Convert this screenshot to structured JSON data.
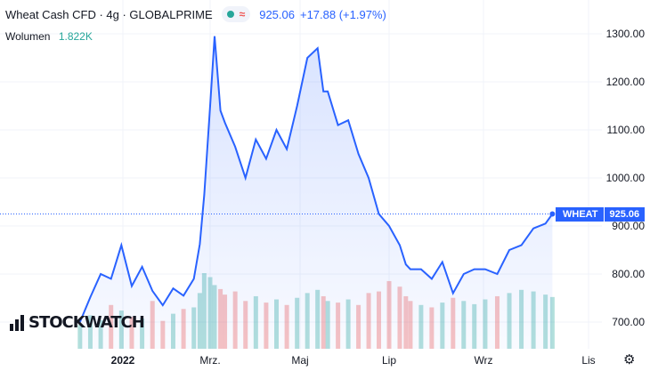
{
  "header": {
    "title": "Wheat Cash CFD · 4g · GLOBALPRIME",
    "price": "925.06",
    "change": "+17.88 (+1.97%)"
  },
  "volume": {
    "label": "Wolumen",
    "value": "1.822K"
  },
  "logo": {
    "text": "STOCKWATCH"
  },
  "price_tag": {
    "symbol": "WHEAT",
    "value": "925.06"
  },
  "colors": {
    "line": "#2962ff",
    "vol_up": "#26a69a",
    "vol_down": "#ef5350",
    "grid": "#f0f3fa"
  },
  "chart_data": {
    "type": "line",
    "symbol": "WHEAT",
    "ylim": [
      660,
      1320
    ],
    "y_ticks": [
      700,
      800,
      900,
      1000,
      1100,
      1200,
      1300
    ],
    "y_tick_labels": [
      "700.00",
      "800.00",
      "900.00",
      "1000.00",
      "1100.00",
      "1200.00",
      "1300.00"
    ],
    "x_ticks": [
      "2022",
      "Mrz.",
      "Maj",
      "Lip",
      "Wrz",
      "Lis"
    ],
    "x": [
      "2021-12-03",
      "2021-12-10",
      "2021-12-17",
      "2021-12-24",
      "2021-12-31",
      "2022-01-07",
      "2022-01-14",
      "2022-01-21",
      "2022-01-28",
      "2022-02-04",
      "2022-02-11",
      "2022-02-18",
      "2022-02-22",
      "2022-02-25",
      "2022-03-01",
      "2022-03-04",
      "2022-03-08",
      "2022-03-11",
      "2022-03-18",
      "2022-03-25",
      "2022-04-01",
      "2022-04-08",
      "2022-04-15",
      "2022-04-22",
      "2022-04-29",
      "2022-05-06",
      "2022-05-13",
      "2022-05-17",
      "2022-05-20",
      "2022-05-27",
      "2022-06-03",
      "2022-06-10",
      "2022-06-17",
      "2022-06-24",
      "2022-07-01",
      "2022-07-08",
      "2022-07-12",
      "2022-07-15",
      "2022-07-22",
      "2022-07-29",
      "2022-08-05",
      "2022-08-12",
      "2022-08-19",
      "2022-08-26",
      "2022-09-02",
      "2022-09-09",
      "2022-09-16",
      "2022-09-23",
      "2022-09-30",
      "2022-10-07",
      "2022-10-11"
    ],
    "values": [
      700,
      752,
      800,
      790,
      860,
      775,
      815,
      765,
      735,
      770,
      755,
      790,
      862,
      965,
      1150,
      1295,
      1140,
      1115,
      1065,
      1000,
      1080,
      1040,
      1100,
      1060,
      1150,
      1250,
      1270,
      1180,
      1180,
      1110,
      1120,
      1050,
      1000,
      925,
      900,
      860,
      820,
      810,
      810,
      790,
      825,
      760,
      800,
      810,
      810,
      800,
      850,
      860,
      895,
      905,
      925
    ],
    "volume": [
      30,
      42,
      36,
      55,
      48,
      40,
      38,
      60,
      35,
      44,
      50,
      52,
      70,
      95,
      90,
      80,
      75,
      68,
      72,
      60,
      66,
      58,
      62,
      55,
      64,
      70,
      74,
      66,
      60,
      58,
      62,
      55,
      70,
      72,
      85,
      78,
      66,
      60,
      55,
      52,
      58,
      64,
      60,
      56,
      62,
      66,
      70,
      74,
      72,
      68,
      65
    ]
  }
}
